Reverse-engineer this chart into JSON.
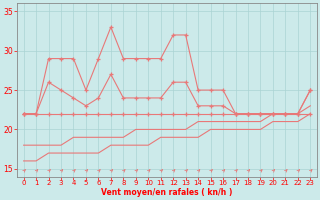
{
  "x": [
    0,
    1,
    2,
    3,
    4,
    5,
    6,
    7,
    8,
    9,
    10,
    11,
    12,
    13,
    14,
    15,
    16,
    17,
    18,
    19,
    20,
    21,
    22,
    23
  ],
  "gusts": [
    22,
    22,
    29,
    29,
    29,
    25,
    29,
    33,
    29,
    29,
    29,
    29,
    32,
    32,
    25,
    25,
    25,
    22,
    22,
    22,
    22,
    22,
    22,
    25
  ],
  "wind_mean": [
    22,
    22,
    26,
    25,
    24,
    23,
    24,
    27,
    24,
    24,
    24,
    24,
    26,
    26,
    23,
    23,
    23,
    22,
    22,
    22,
    22,
    22,
    22,
    25
  ],
  "wind_flat1": [
    22,
    22,
    22,
    22,
    22,
    22,
    22,
    22,
    22,
    22,
    22,
    22,
    22,
    22,
    22,
    22,
    22,
    22,
    22,
    22,
    22,
    22,
    22,
    22
  ],
  "wind_lower": [
    18,
    18,
    18,
    18,
    19,
    19,
    19,
    19,
    19,
    20,
    20,
    20,
    20,
    20,
    21,
    21,
    21,
    21,
    21,
    21,
    22,
    22,
    22,
    23
  ],
  "wind_min": [
    16,
    16,
    17,
    17,
    17,
    17,
    17,
    18,
    18,
    18,
    18,
    19,
    19,
    19,
    19,
    20,
    20,
    20,
    20,
    20,
    21,
    21,
    21,
    22
  ],
  "bg_color": "#cceaea",
  "line_color": "#e87878",
  "grid_color": "#aad4d4",
  "xlabel": "Vent moyen/en rafales ( kn/h )",
  "xlim_lo": -0.5,
  "xlim_hi": 23.5,
  "ylim_lo": 14,
  "ylim_hi": 36,
  "yticks": [
    15,
    20,
    25,
    30,
    35
  ],
  "xticks": [
    0,
    1,
    2,
    3,
    4,
    5,
    6,
    7,
    8,
    9,
    10,
    11,
    12,
    13,
    14,
    15,
    16,
    17,
    18,
    19,
    20,
    21,
    22,
    23
  ]
}
